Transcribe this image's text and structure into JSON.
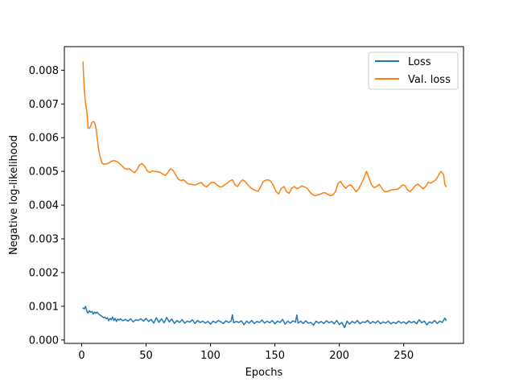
{
  "chart_data": {
    "type": "line",
    "xlabel": "Epochs",
    "ylabel": "Negative log-likelihood",
    "xlim": [
      -13.4,
      296.4
    ],
    "ylim": [
      -0.0001,
      0.0087
    ],
    "xticks": [
      0,
      50,
      100,
      150,
      200,
      250
    ],
    "yticks": [
      0.0,
      0.001,
      0.002,
      0.003,
      0.004,
      0.005,
      0.006,
      0.007,
      0.008
    ],
    "ytick_labels": [
      "0.000",
      "0.001",
      "0.002",
      "0.003",
      "0.004",
      "0.005",
      "0.006",
      "0.007",
      "0.008"
    ],
    "grid": false,
    "legend_position": "top-right",
    "series": [
      {
        "name": "Loss",
        "color": "#1f77b4",
        "points": [
          [
            1,
            0.00095
          ],
          [
            2,
            0.00092
          ],
          [
            3,
            0.001
          ],
          [
            4,
            0.00085
          ],
          [
            5,
            0.0008
          ],
          [
            6,
            0.00087
          ],
          [
            7,
            0.00082
          ],
          [
            8,
            0.00085
          ],
          [
            9,
            0.00077
          ],
          [
            10,
            0.00083
          ],
          [
            11,
            0.00079
          ],
          [
            12,
            0.00083
          ],
          [
            13,
            0.00078
          ],
          [
            14,
            0.00075
          ],
          [
            15,
            0.00072
          ],
          [
            16,
            0.0007
          ],
          [
            17,
            0.00066
          ],
          [
            18,
            0.00068
          ],
          [
            19,
            0.00063
          ],
          [
            20,
            0.00066
          ],
          [
            21,
            0.00057
          ],
          [
            22,
            0.00064
          ],
          [
            23,
            0.0006
          ],
          [
            24,
            0.00068
          ],
          [
            25,
            0.00058
          ],
          [
            26,
            0.00064
          ],
          [
            27,
            0.00055
          ],
          [
            28,
            0.00062
          ],
          [
            29,
            0.00059
          ],
          [
            30,
            0.00063
          ],
          [
            32,
            0.00057
          ],
          [
            34,
            0.00061
          ],
          [
            36,
            0.00056
          ],
          [
            38,
            0.00063
          ],
          [
            40,
            0.00054
          ],
          [
            42,
            0.0006
          ],
          [
            44,
            0.00058
          ],
          [
            46,
            0.00063
          ],
          [
            48,
            0.00056
          ],
          [
            50,
            0.00064
          ],
          [
            52,
            0.00055
          ],
          [
            54,
            0.00061
          ],
          [
            56,
            0.0005
          ],
          [
            58,
            0.00066
          ],
          [
            60,
            0.00052
          ],
          [
            62,
            0.00063
          ],
          [
            64,
            0.00051
          ],
          [
            66,
            0.00067
          ],
          [
            68,
            0.00054
          ],
          [
            70,
            0.00062
          ],
          [
            72,
            0.00049
          ],
          [
            74,
            0.00058
          ],
          [
            76,
            0.00052
          ],
          [
            78,
            0.0006
          ],
          [
            80,
            0.0005
          ],
          [
            82,
            0.00056
          ],
          [
            84,
            0.00053
          ],
          [
            86,
            0.0006
          ],
          [
            88,
            0.00049
          ],
          [
            90,
            0.00058
          ],
          [
            92,
            0.00052
          ],
          [
            94,
            0.00056
          ],
          [
            96,
            0.0005
          ],
          [
            98,
            0.00055
          ],
          [
            100,
            0.00047
          ],
          [
            102,
            0.00056
          ],
          [
            104,
            0.00051
          ],
          [
            106,
            0.00058
          ],
          [
            108,
            0.00054
          ],
          [
            110,
            0.00049
          ],
          [
            112,
            0.00057
          ],
          [
            114,
            0.00052
          ],
          [
            116,
            0.00056
          ],
          [
            117,
            0.00075
          ],
          [
            118,
            0.00051
          ],
          [
            120,
            0.00055
          ],
          [
            122,
            0.00052
          ],
          [
            124,
            0.00057
          ],
          [
            126,
            0.00045
          ],
          [
            128,
            0.00056
          ],
          [
            130,
            0.0005
          ],
          [
            132,
            0.00058
          ],
          [
            134,
            0.00049
          ],
          [
            136,
            0.00055
          ],
          [
            138,
            0.00052
          ],
          [
            140,
            0.00059
          ],
          [
            142,
            0.0005
          ],
          [
            144,
            0.00056
          ],
          [
            146,
            0.00051
          ],
          [
            148,
            0.00058
          ],
          [
            150,
            0.00048
          ],
          [
            152,
            0.00056
          ],
          [
            154,
            0.00052
          ],
          [
            156,
            0.00061
          ],
          [
            158,
            0.00047
          ],
          [
            160,
            0.00056
          ],
          [
            162,
            0.0005
          ],
          [
            164,
            0.00057
          ],
          [
            166,
            0.00053
          ],
          [
            167,
            0.00074
          ],
          [
            168,
            0.0005
          ],
          [
            170,
            0.00056
          ],
          [
            172,
            0.00049
          ],
          [
            174,
            0.00057
          ],
          [
            176,
            0.0005
          ],
          [
            178,
            0.00052
          ],
          [
            180,
            0.00044
          ],
          [
            182,
            0.00056
          ],
          [
            184,
            0.0005
          ],
          [
            186,
            0.00055
          ],
          [
            188,
            0.00049
          ],
          [
            190,
            0.00057
          ],
          [
            192,
            0.00051
          ],
          [
            194,
            0.00055
          ],
          [
            196,
            0.00048
          ],
          [
            198,
            0.00058
          ],
          [
            200,
            0.00046
          ],
          [
            202,
            0.00052
          ],
          [
            204,
            0.00037
          ],
          [
            206,
            0.00056
          ],
          [
            208,
            0.00047
          ],
          [
            210,
            0.00055
          ],
          [
            212,
            0.0005
          ],
          [
            214,
            0.00058
          ],
          [
            216,
            0.00048
          ],
          [
            218,
            0.00054
          ],
          [
            220,
            0.00052
          ],
          [
            222,
            0.00058
          ],
          [
            224,
            0.00049
          ],
          [
            226,
            0.00055
          ],
          [
            228,
            0.0005
          ],
          [
            230,
            0.00057
          ],
          [
            232,
            0.00048
          ],
          [
            234,
            0.00054
          ],
          [
            236,
            0.0005
          ],
          [
            238,
            0.00056
          ],
          [
            240,
            0.00048
          ],
          [
            242,
            0.00053
          ],
          [
            244,
            0.00049
          ],
          [
            246,
            0.00056
          ],
          [
            248,
            0.0005
          ],
          [
            250,
            0.00054
          ],
          [
            252,
            0.00048
          ],
          [
            254,
            0.00056
          ],
          [
            256,
            0.00051
          ],
          [
            258,
            0.00055
          ],
          [
            260,
            0.00048
          ],
          [
            262,
            0.0006
          ],
          [
            264,
            0.00051
          ],
          [
            266,
            0.00056
          ],
          [
            268,
            0.00045
          ],
          [
            270,
            0.00054
          ],
          [
            272,
            0.0005
          ],
          [
            274,
            0.00058
          ],
          [
            276,
            0.00049
          ],
          [
            278,
            0.00056
          ],
          [
            280,
            0.00052
          ],
          [
            282,
            0.00065
          ],
          [
            283,
            0.00058
          ]
        ]
      },
      {
        "name": "Val. loss",
        "color": "#ff7f0e",
        "points": [
          [
            1,
            0.00825
          ],
          [
            2,
            0.00745
          ],
          [
            3,
            0.007
          ],
          [
            4,
            0.0068
          ],
          [
            5,
            0.00628
          ],
          [
            6,
            0.00628
          ],
          [
            7,
            0.00635
          ],
          [
            8,
            0.00645
          ],
          [
            9,
            0.00648
          ],
          [
            10,
            0.00645
          ],
          [
            11,
            0.0063
          ],
          [
            12,
            0.006
          ],
          [
            13,
            0.0057
          ],
          [
            14,
            0.00548
          ],
          [
            15,
            0.00535
          ],
          [
            16,
            0.00524
          ],
          [
            17,
            0.00522
          ],
          [
            19,
            0.00522
          ],
          [
            21,
            0.00525
          ],
          [
            23,
            0.0053
          ],
          [
            25,
            0.00532
          ],
          [
            27,
            0.0053
          ],
          [
            29,
            0.00525
          ],
          [
            31,
            0.00518
          ],
          [
            33,
            0.0051
          ],
          [
            35,
            0.00506
          ],
          [
            37,
            0.00508
          ],
          [
            39,
            0.00502
          ],
          [
            41,
            0.00496
          ],
          [
            43,
            0.00505
          ],
          [
            45,
            0.0052
          ],
          [
            47,
            0.00523
          ],
          [
            49,
            0.00515
          ],
          [
            51,
            0.00501
          ],
          [
            53,
            0.00497
          ],
          [
            55,
            0.00502
          ],
          [
            57,
            0.005
          ],
          [
            59,
            0.00499
          ],
          [
            61,
            0.00497
          ],
          [
            63,
            0.00492
          ],
          [
            65,
            0.00488
          ],
          [
            67,
            0.00497
          ],
          [
            69,
            0.00508
          ],
          [
            71,
            0.00503
          ],
          [
            73,
            0.0049
          ],
          [
            75,
            0.00477
          ],
          [
            77,
            0.00473
          ],
          [
            79,
            0.00475
          ],
          [
            81,
            0.00468
          ],
          [
            83,
            0.00463
          ],
          [
            85,
            0.00462
          ],
          [
            87,
            0.0046
          ],
          [
            89,
            0.00461
          ],
          [
            91,
            0.00465
          ],
          [
            93,
            0.00467
          ],
          [
            95,
            0.00458
          ],
          [
            97,
            0.00454
          ],
          [
            99,
            0.00462
          ],
          [
            101,
            0.00468
          ],
          [
            103,
            0.00467
          ],
          [
            105,
            0.0046
          ],
          [
            107,
            0.00454
          ],
          [
            109,
            0.00454
          ],
          [
            111,
            0.0046
          ],
          [
            113,
            0.00465
          ],
          [
            115,
            0.00472
          ],
          [
            117,
            0.00475
          ],
          [
            119,
            0.0046
          ],
          [
            121,
            0.00455
          ],
          [
            123,
            0.00468
          ],
          [
            125,
            0.00475
          ],
          [
            127,
            0.0047
          ],
          [
            129,
            0.0046
          ],
          [
            131,
            0.00452
          ],
          [
            133,
            0.00447
          ],
          [
            135,
            0.00443
          ],
          [
            137,
            0.00441
          ],
          [
            139,
            0.00455
          ],
          [
            141,
            0.0047
          ],
          [
            143,
            0.00474
          ],
          [
            145,
            0.00475
          ],
          [
            147,
            0.0047
          ],
          [
            149,
            0.00457
          ],
          [
            151,
            0.0044
          ],
          [
            153,
            0.00433
          ],
          [
            155,
            0.0045
          ],
          [
            157,
            0.00455
          ],
          [
            159,
            0.0044
          ],
          [
            161,
            0.00435
          ],
          [
            163,
            0.0045
          ],
          [
            165,
            0.00455
          ],
          [
            167,
            0.00449
          ],
          [
            169,
            0.00452
          ],
          [
            171,
            0.00457
          ],
          [
            173,
            0.00454
          ],
          [
            175,
            0.0045
          ],
          [
            177,
            0.0044
          ],
          [
            179,
            0.00432
          ],
          [
            181,
            0.00428
          ],
          [
            183,
            0.0043
          ],
          [
            185,
            0.00432
          ],
          [
            187,
            0.00436
          ],
          [
            189,
            0.00437
          ],
          [
            191,
            0.00432
          ],
          [
            193,
            0.00428
          ],
          [
            195,
            0.0043
          ],
          [
            197,
            0.0044
          ],
          [
            199,
            0.00465
          ],
          [
            201,
            0.0047
          ],
          [
            203,
            0.00458
          ],
          [
            205,
            0.0045
          ],
          [
            207,
            0.00458
          ],
          [
            209,
            0.0046
          ],
          [
            211,
            0.0045
          ],
          [
            213,
            0.0044
          ],
          [
            215,
            0.00448
          ],
          [
            217,
            0.00463
          ],
          [
            219,
            0.0048
          ],
          [
            221,
            0.005
          ],
          [
            223,
            0.00482
          ],
          [
            225,
            0.0046
          ],
          [
            227,
            0.00452
          ],
          [
            229,
            0.00455
          ],
          [
            231,
            0.00462
          ],
          [
            233,
            0.0045
          ],
          [
            235,
            0.0044
          ],
          [
            237,
            0.0044
          ],
          [
            239,
            0.00443
          ],
          [
            241,
            0.00446
          ],
          [
            243,
            0.00446
          ],
          [
            245,
            0.00447
          ],
          [
            247,
            0.00452
          ],
          [
            249,
            0.0046
          ],
          [
            251,
            0.00458
          ],
          [
            253,
            0.00445
          ],
          [
            255,
            0.0044
          ],
          [
            257,
            0.00448
          ],
          [
            259,
            0.00458
          ],
          [
            261,
            0.00462
          ],
          [
            263,
            0.00456
          ],
          [
            265,
            0.00448
          ],
          [
            267,
            0.00455
          ],
          [
            269,
            0.00468
          ],
          [
            271,
            0.00465
          ],
          [
            273,
            0.0047
          ],
          [
            275,
            0.00475
          ],
          [
            277,
            0.00488
          ],
          [
            279,
            0.005
          ],
          [
            281,
            0.0049
          ],
          [
            282,
            0.0046
          ],
          [
            283,
            0.00455
          ]
        ]
      }
    ]
  }
}
